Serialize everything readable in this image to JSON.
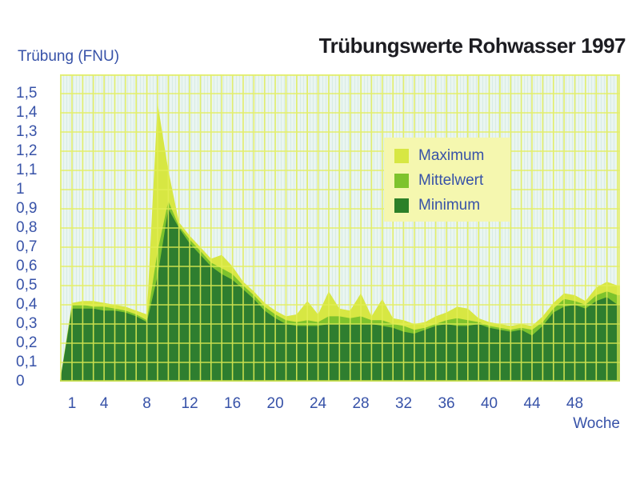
{
  "header": {
    "title": "Trübungswerte Rohwasser 1997"
  },
  "axes": {
    "y_title": "Trübung (FNU)",
    "x_title": "Woche",
    "y_ticks": [
      {
        "label": "1,5",
        "value": 1.5
      },
      {
        "label": "1,4",
        "value": 1.4
      },
      {
        "label": "1,3",
        "value": 1.3
      },
      {
        "label": "1,2",
        "value": 1.2
      },
      {
        "label": "1,1",
        "value": 1.1
      },
      {
        "label": "1",
        "value": 1.0
      },
      {
        "label": "0,9",
        "value": 0.9
      },
      {
        "label": "0,8",
        "value": 0.8
      },
      {
        "label": "0,7",
        "value": 0.7
      },
      {
        "label": "0,6",
        "value": 0.6
      },
      {
        "label": "0,5",
        "value": 0.5
      },
      {
        "label": "0,4",
        "value": 0.4
      },
      {
        "label": "0,3",
        "value": 0.3
      },
      {
        "label": "0,2",
        "value": 0.2
      },
      {
        "label": "0,1",
        "value": 0.1
      },
      {
        "label": "0",
        "value": 0.0
      }
    ],
    "x_ticks": [
      1,
      4,
      8,
      12,
      16,
      20,
      24,
      28,
      32,
      36,
      40,
      44,
      48
    ]
  },
  "legend": {
    "items": [
      {
        "label": "Maximum",
        "color": "#d7e743"
      },
      {
        "label": "Mittelwert",
        "color": "#7ec32d"
      },
      {
        "label": "Minimum",
        "color": "#2c8028"
      }
    ]
  },
  "colors": {
    "plot_background": "#eaf5f1",
    "grid": "#e3ef55",
    "legend_background": "#f5f7af",
    "axis_text": "#3752a8",
    "title_text": "#1d1d22"
  },
  "chart_data": {
    "type": "area",
    "title": "Trübungswerte Rohwasser 1997",
    "xlabel": "Woche",
    "ylabel": "Trübung (FNU)",
    "x_unit": "week",
    "x_range": [
      1,
      52
    ],
    "ylim": [
      0,
      1.6
    ],
    "grid": {
      "x_step_weeks": 1,
      "y_step": 0.1,
      "visible": true,
      "drawn_over_areas": true
    },
    "legend_position": "upper right inside plot",
    "series": [
      {
        "name": "Maximum",
        "color": "#d7e743",
        "values": [
          0.41,
          0.42,
          0.42,
          0.41,
          0.4,
          0.39,
          0.37,
          0.35,
          1.45,
          1.1,
          0.83,
          0.76,
          0.7,
          0.64,
          0.66,
          0.6,
          0.52,
          0.47,
          0.41,
          0.37,
          0.34,
          0.35,
          0.42,
          0.35,
          0.47,
          0.38,
          0.37,
          0.46,
          0.34,
          0.43,
          0.33,
          0.32,
          0.3,
          0.31,
          0.34,
          0.36,
          0.39,
          0.38,
          0.33,
          0.31,
          0.3,
          0.29,
          0.3,
          0.29,
          0.34,
          0.41,
          0.46,
          0.45,
          0.42,
          0.49,
          0.52,
          0.5
        ]
      },
      {
        "name": "Mittelwert",
        "color": "#7ec32d",
        "values": [
          0.4,
          0.4,
          0.39,
          0.39,
          0.38,
          0.37,
          0.35,
          0.32,
          0.68,
          0.94,
          0.81,
          0.74,
          0.68,
          0.62,
          0.59,
          0.56,
          0.5,
          0.45,
          0.39,
          0.35,
          0.32,
          0.31,
          0.32,
          0.31,
          0.34,
          0.34,
          0.33,
          0.34,
          0.32,
          0.32,
          0.3,
          0.29,
          0.27,
          0.28,
          0.3,
          0.32,
          0.33,
          0.32,
          0.31,
          0.29,
          0.28,
          0.27,
          0.28,
          0.27,
          0.31,
          0.38,
          0.43,
          0.42,
          0.4,
          0.45,
          0.47,
          0.45
        ]
      },
      {
        "name": "Minimum",
        "color": "#2e7e2f",
        "values": [
          0.38,
          0.38,
          0.38,
          0.37,
          0.37,
          0.36,
          0.34,
          0.31,
          0.55,
          0.9,
          0.8,
          0.72,
          0.66,
          0.6,
          0.56,
          0.53,
          0.48,
          0.43,
          0.37,
          0.33,
          0.3,
          0.29,
          0.29,
          0.29,
          0.3,
          0.3,
          0.3,
          0.3,
          0.3,
          0.29,
          0.28,
          0.26,
          0.25,
          0.27,
          0.29,
          0.3,
          0.29,
          0.29,
          0.3,
          0.28,
          0.27,
          0.26,
          0.27,
          0.24,
          0.29,
          0.36,
          0.39,
          0.4,
          0.38,
          0.42,
          0.44,
          0.4
        ]
      }
    ]
  }
}
